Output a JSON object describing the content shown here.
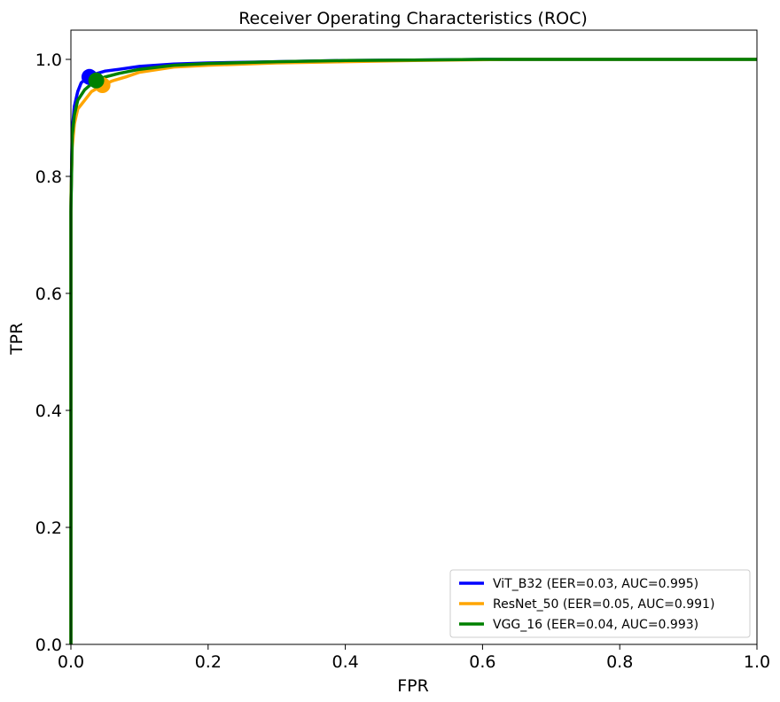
{
  "chart_data": {
    "type": "line",
    "title": "Receiver Operating Characteristics (ROC)",
    "xlabel": "FPR",
    "ylabel": "TPR",
    "xlim": [
      0,
      1.0
    ],
    "ylim": [
      0,
      1.05
    ],
    "xticks": [
      0.0,
      0.2,
      0.4,
      0.6,
      0.8,
      1.0
    ],
    "xtick_labels": [
      "0.0",
      "0.2",
      "0.4",
      "0.6",
      "0.8",
      "1.0"
    ],
    "yticks": [
      0.0,
      0.2,
      0.4,
      0.6,
      0.8,
      1.0
    ],
    "ytick_labels": [
      "0.0",
      "0.2",
      "0.4",
      "0.6",
      "0.8",
      "1.0"
    ],
    "grid": false,
    "legend_position": "bottom-right",
    "series": [
      {
        "name": "ViT_B32 (EER=0.03, AUC=0.995)",
        "color": "#0000ff",
        "x": [
          0,
          0,
          0.002,
          0.005,
          0.01,
          0.015,
          0.02,
          0.027,
          0.035,
          0.05,
          0.07,
          0.1,
          0.15,
          0.2,
          0.3,
          0.4,
          0.5,
          0.6,
          0.8,
          1.0
        ],
        "y": [
          0,
          0.75,
          0.88,
          0.92,
          0.945,
          0.96,
          0.965,
          0.97,
          0.975,
          0.98,
          0.983,
          0.988,
          0.992,
          0.994,
          0.996,
          0.998,
          0.999,
          1.0,
          1.0,
          1.0
        ],
        "eer_point": [
          0.027,
          0.97
        ]
      },
      {
        "name": "ResNet_50 (EER=0.05, AUC=0.991)",
        "color": "#ffa500",
        "x": [
          0,
          0,
          0.002,
          0.005,
          0.01,
          0.02,
          0.03,
          0.045,
          0.06,
          0.08,
          0.1,
          0.15,
          0.2,
          0.3,
          0.4,
          0.5,
          0.64,
          0.8,
          1.0
        ],
        "y": [
          0,
          0.76,
          0.85,
          0.89,
          0.915,
          0.93,
          0.945,
          0.955,
          0.963,
          0.97,
          0.978,
          0.987,
          0.99,
          0.994,
          0.996,
          0.998,
          1.0,
          1.0,
          1.0
        ],
        "eer_point": [
          0.046,
          0.956
        ]
      },
      {
        "name": "VGG_16 (EER=0.04, AUC=0.993)",
        "color": "#008000",
        "x": [
          0,
          0,
          0.002,
          0.005,
          0.01,
          0.02,
          0.03,
          0.037,
          0.05,
          0.07,
          0.1,
          0.15,
          0.2,
          0.3,
          0.4,
          0.5,
          0.6,
          0.8,
          1.0
        ],
        "y": [
          0,
          0.74,
          0.87,
          0.905,
          0.93,
          0.948,
          0.958,
          0.964,
          0.97,
          0.976,
          0.983,
          0.99,
          0.993,
          0.996,
          0.998,
          0.999,
          1.0,
          1.0,
          1.0
        ],
        "eer_point": [
          0.037,
          0.964
        ]
      }
    ]
  }
}
